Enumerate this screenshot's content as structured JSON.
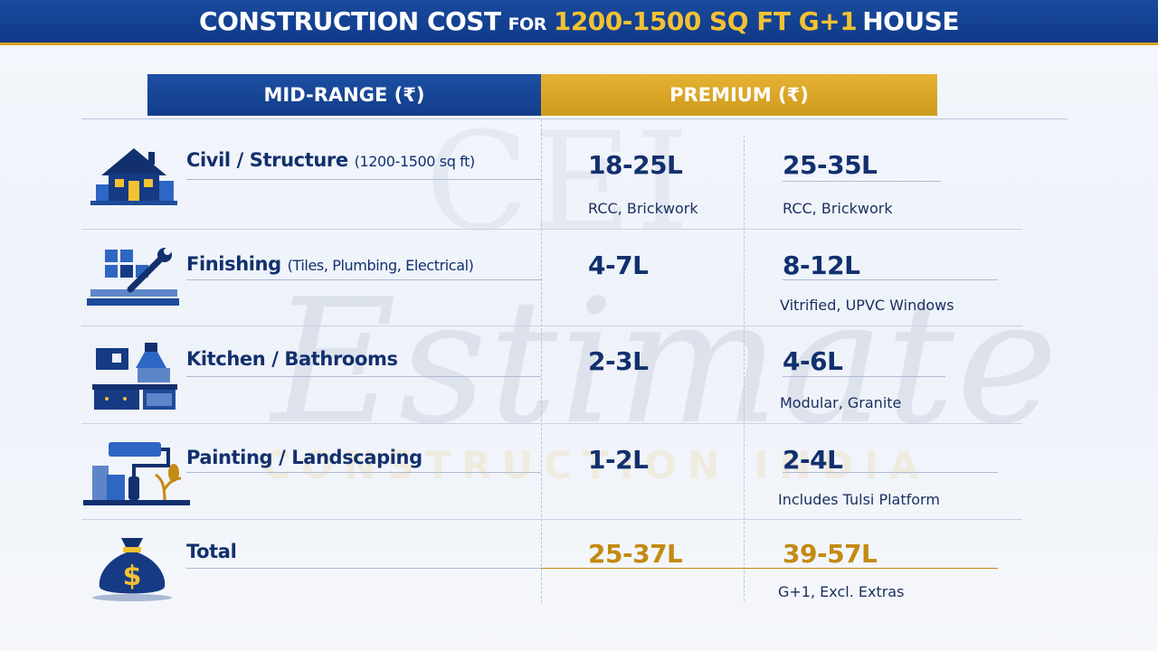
{
  "title": {
    "part1": "CONSTRUCTION COST",
    "part2": "FOR",
    "part3": "1200-1500 SQ FT G+1",
    "part4": "HOUSE"
  },
  "columns": {
    "mid": "MID-RANGE (₹)",
    "premium": "PREMIUM (₹)"
  },
  "watermark": {
    "logo": "CEI",
    "word": "Estimate",
    "tagline": "CONSTRUCTION INDIA"
  },
  "rows": [
    {
      "icon": "house-icon",
      "label": "Civil / Structure",
      "sub": "(1200-1500 sq ft)",
      "mid": "18-25L",
      "mid_note": "RCC, Brickwork",
      "premium": "25-35L",
      "premium_note": "RCC, Brickwork"
    },
    {
      "icon": "tiles-wrench-icon",
      "label": "Finishing",
      "sub": "(Tiles, Plumbing, Electrical)",
      "mid": "4-7L",
      "mid_note": "",
      "premium": "8-12L",
      "premium_note": "Vitrified, UPVC Windows"
    },
    {
      "icon": "kitchen-icon",
      "label": "Kitchen / Bathrooms",
      "sub": "",
      "mid": "2-3L",
      "mid_note": "",
      "premium": "4-6L",
      "premium_note": "Modular, Granite"
    },
    {
      "icon": "paint-roller-icon",
      "label": "Painting / Landscaping",
      "sub": "",
      "mid": "1-2L",
      "mid_note": "",
      "premium": "2-4L",
      "premium_note": "Includes Tulsi Platform"
    },
    {
      "icon": "money-bag-icon",
      "label": "Total",
      "sub": "",
      "mid": "25-37L",
      "mid_note": "",
      "premium": "39-57L",
      "premium_note": "G+1, Excl. Extras"
    }
  ],
  "colors": {
    "navy": "#12306e",
    "blue": "#1a4a9e",
    "gold": "#d6a11e"
  }
}
